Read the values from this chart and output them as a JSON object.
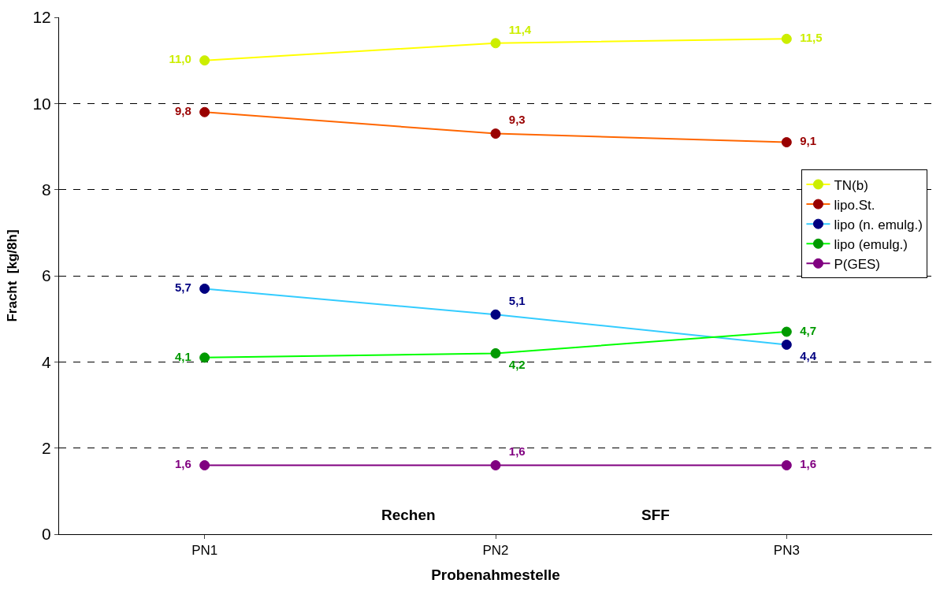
{
  "chart_data": {
    "type": "line",
    "xlabel": "Probenahmestelle",
    "ylabel": "Fracht  [kg/8h]",
    "categories": [
      "PN1",
      "PN2",
      "PN3"
    ],
    "series": [
      {
        "name": "TN(b)",
        "color": "#ffff00",
        "colors": [
          "#ccee00",
          "#ccee00",
          "#ccee00"
        ],
        "values": [
          11.0,
          11.4,
          11.5
        ],
        "value_labels": [
          "11,0",
          "11,4",
          "11,5"
        ]
      },
      {
        "name": "lipo.St.",
        "color": "#ff6600",
        "colors": [
          "#990000",
          "#990000",
          "#990000"
        ],
        "values": [
          9.8,
          9.3,
          9.1
        ],
        "value_labels": [
          "9,8",
          "9,3",
          "9,1"
        ]
      },
      {
        "name": "lipo (n. emulg.)",
        "color": "#33ccff",
        "colors": [
          "#000080",
          "#000080",
          "#000080"
        ],
        "values": [
          5.7,
          5.1,
          4.4
        ],
        "value_labels": [
          "5,7",
          "5,1",
          "4,4"
        ]
      },
      {
        "name": "lipo (emulg.)",
        "color": "#00ff00",
        "colors": [
          "#009900",
          "#009900",
          "#009900"
        ],
        "values": [
          4.1,
          4.2,
          4.7
        ],
        "value_labels": [
          "4,1",
          "4,2",
          "4,7"
        ]
      },
      {
        "name": "P(GES)",
        "color": "#800080",
        "colors": [
          "#800080",
          "#800080",
          "#800080"
        ],
        "values": [
          1.6,
          1.6,
          1.6
        ],
        "value_labels": [
          "1,6",
          "1,6",
          "1,6"
        ]
      }
    ],
    "annotations": [
      "Rechen",
      "SFF"
    ],
    "ylim": [
      0,
      12
    ],
    "yticks": [
      0,
      2,
      4,
      6,
      8,
      10,
      12
    ],
    "grid": "y",
    "legend": "right",
    "marker": "circle",
    "line_style": "solid"
  }
}
